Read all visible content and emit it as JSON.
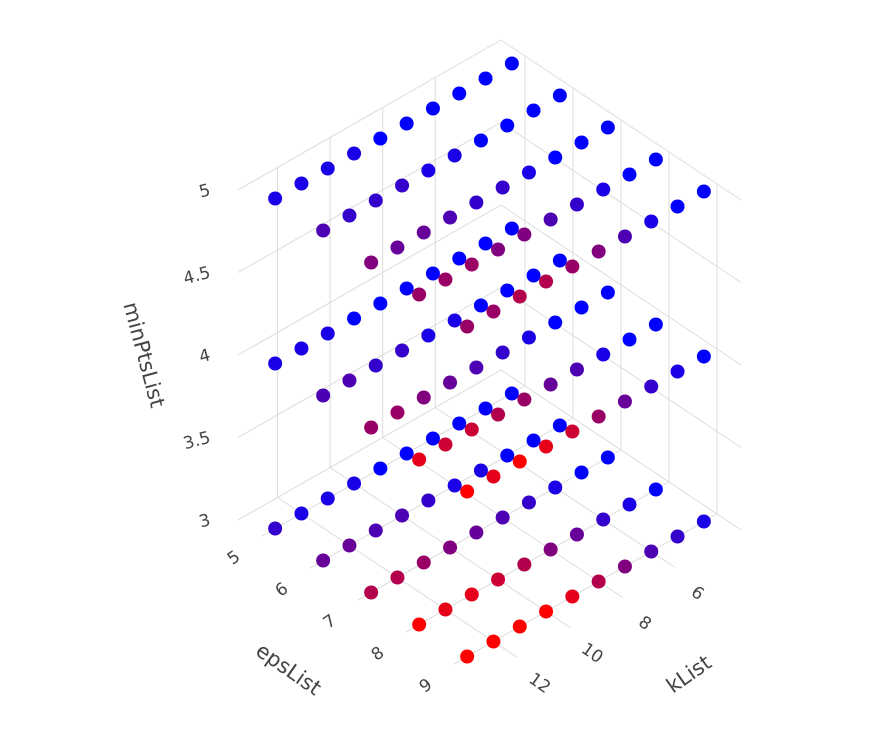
{
  "chart_data": {
    "type": "scatter3d",
    "xlabel": "kList",
    "ylabel": "epsList",
    "zlabel": "minPtsList",
    "x": [
      4,
      5,
      6,
      7,
      8,
      9,
      10,
      11,
      12,
      13
    ],
    "y": [
      5,
      6,
      7,
      8,
      9
    ],
    "z": [
      3,
      4,
      5
    ],
    "values": [
      [
        [
          0,
          0,
          0,
          0,
          1
        ],
        [
          0,
          0,
          0,
          1,
          2
        ],
        [
          0,
          0,
          1,
          2,
          3
        ],
        [
          0,
          1,
          2,
          4,
          5
        ],
        [
          0,
          1,
          3,
          5,
          7
        ],
        [
          0,
          2,
          4,
          7,
          9
        ],
        [
          1,
          3,
          5,
          8,
          10
        ],
        [
          1,
          3,
          6,
          9,
          10
        ],
        [
          1,
          4,
          7,
          9,
          10
        ],
        [
          2,
          4,
          7,
          10,
          10
        ]
      ],
      [
        [
          0,
          0,
          0,
          0,
          0
        ],
        [
          0,
          0,
          0,
          0,
          1
        ],
        [
          0,
          0,
          0,
          1,
          2
        ],
        [
          0,
          0,
          1,
          3,
          4
        ],
        [
          0,
          1,
          2,
          4,
          6
        ],
        [
          0,
          1,
          3,
          6,
          8
        ],
        [
          0,
          2,
          4,
          7,
          9
        ],
        [
          1,
          2,
          5,
          8,
          10
        ],
        [
          1,
          3,
          6,
          8,
          9
        ],
        [
          1,
          3,
          6,
          9,
          10
        ]
      ],
      [
        [
          0,
          0,
          0,
          0,
          0
        ],
        [
          0,
          0,
          0,
          0,
          0
        ],
        [
          0,
          0,
          0,
          1,
          1
        ],
        [
          0,
          0,
          1,
          2,
          3
        ],
        [
          0,
          1,
          2,
          3,
          5
        ],
        [
          0,
          1,
          2,
          5,
          6
        ],
        [
          1,
          2,
          3,
          5,
          7
        ],
        [
          1,
          2,
          4,
          6,
          7
        ],
        [
          1,
          2,
          4,
          6,
          6
        ],
        [
          1,
          3,
          5,
          6,
          6
        ]
      ]
    ],
    "clim": [
      0,
      10
    ],
    "colorscale": [
      "#0000ff",
      "#ff0000"
    ],
    "xlim": [
      3.5,
      13.5
    ],
    "ylim": [
      4.5,
      9.5
    ],
    "zlim": [
      3,
      5
    ],
    "xticks": [
      6,
      8,
      10,
      12
    ],
    "yticks": [
      5,
      6,
      7,
      8,
      9
    ],
    "zticks": [
      3,
      3.5,
      4,
      4.5,
      5
    ],
    "grid": true
  }
}
